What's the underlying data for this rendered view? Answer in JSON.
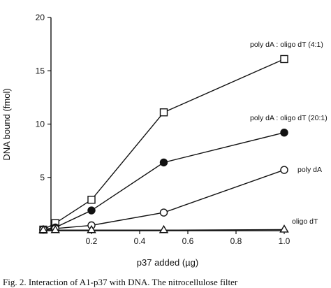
{
  "chart_data": {
    "type": "line",
    "title": "",
    "xlabel": "p37 added (µg)",
    "ylabel": "DNA bound (fmol)",
    "xlim": [
      0,
      1.0
    ],
    "ylim": [
      0,
      20
    ],
    "xticks": [
      0.2,
      0.4,
      0.6,
      0.8,
      1.0
    ],
    "xtick_labels": [
      "0.2",
      "0.4",
      "0.6",
      "0.8",
      "1.0"
    ],
    "yticks": [
      0,
      5,
      10,
      15,
      20
    ],
    "ytick_labels": [
      "0",
      "5",
      "10",
      "15",
      "20"
    ],
    "grid": false,
    "series": [
      {
        "name": "poly dA : oligo dT (4:1)",
        "marker": "open-square",
        "x": [
          0,
          0.05,
          0.2,
          0.5,
          1.0
        ],
        "y": [
          0.1,
          0.7,
          2.9,
          11.1,
          16.1
        ]
      },
      {
        "name": "poly dA : oligo dT (20:1)",
        "marker": "filled-circle",
        "x": [
          0,
          0.05,
          0.2,
          0.5,
          1.0
        ],
        "y": [
          0.1,
          0.3,
          1.9,
          6.4,
          9.2
        ]
      },
      {
        "name": "poly dA",
        "marker": "open-circle",
        "x": [
          0,
          0.05,
          0.2,
          0.5,
          1.0
        ],
        "y": [
          0.1,
          0.2,
          0.5,
          1.7,
          5.7
        ]
      },
      {
        "name": "oligo dT",
        "marker": "open-triangle",
        "x": [
          0,
          0.05,
          0.2,
          0.5,
          1.0
        ],
        "y": [
          0.05,
          0.05,
          0.05,
          0.05,
          0.1
        ]
      }
    ]
  },
  "caption": "Fig. 2.   Interaction of A1-p37 with DNA. The nitrocellulose filter"
}
